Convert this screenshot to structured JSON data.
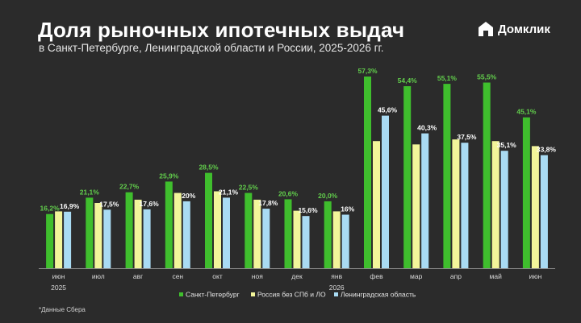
{
  "header": {
    "title": "Доля рыночных ипотечных выдач",
    "subtitle": "в Санкт-Петербурге, Ленинградской области и России, 2025-2026 гг.",
    "logo_text": "Домклик",
    "logo_icon": "domclick-house-icon"
  },
  "footnote": "*Данные Сбера",
  "colors": {
    "background": "#2b2b2b",
    "spb": "#3fbe2d",
    "russia": "#f2f59a",
    "lo": "#a9dbf3",
    "spb_label": "#62cf4c",
    "lo_label": "#ffffff"
  },
  "chart_data": {
    "type": "bar",
    "categories": [
      "июн",
      "июл",
      "авг",
      "сен",
      "окт",
      "ноя",
      "дек",
      "янв",
      "фев",
      "мар",
      "апр",
      "май",
      "июн"
    ],
    "year_labels": [
      {
        "index": 0,
        "text": "2025"
      },
      {
        "index": 7,
        "text": "2026"
      }
    ],
    "series": [
      {
        "name": "Санкт-Петербург",
        "values": [
          16.2,
          21.1,
          22.7,
          25.9,
          28.5,
          22.5,
          20.6,
          20.0,
          57.3,
          54.4,
          55.1,
          55.5,
          45.1
        ],
        "labels": [
          "16,2%",
          "21,1%",
          "22,7%",
          "25,9%",
          "28,5%",
          "22,5%",
          "20,6%",
          "20,0%",
          "57,3%",
          "54,4%",
          "55,1%",
          "55,5%",
          "45,1%"
        ]
      },
      {
        "name": "Россия без СПб и ЛО",
        "values": [
          17.0,
          19.5,
          20.5,
          22.5,
          23.0,
          20.5,
          17.2,
          17.0,
          38.0,
          37.0,
          38.5,
          38.0,
          36.5
        ],
        "labels": []
      },
      {
        "name": "Ленинградская область",
        "values": [
          16.9,
          17.5,
          17.6,
          20.0,
          21.1,
          17.8,
          15.6,
          16.0,
          45.6,
          40.3,
          37.5,
          35.1,
          33.8
        ],
        "labels": [
          "16,9%",
          "17,5%",
          "17,6%",
          "20%",
          "21,1%",
          "17,8%",
          "15,6%",
          "16%",
          "45,6%",
          "40,3%",
          "37,5%",
          "35,1%",
          "33,8%"
        ]
      }
    ],
    "ylim": [
      0,
      57.3
    ],
    "grid": false,
    "legend": "bottom-center",
    "xlabel": "",
    "ylabel": ""
  }
}
